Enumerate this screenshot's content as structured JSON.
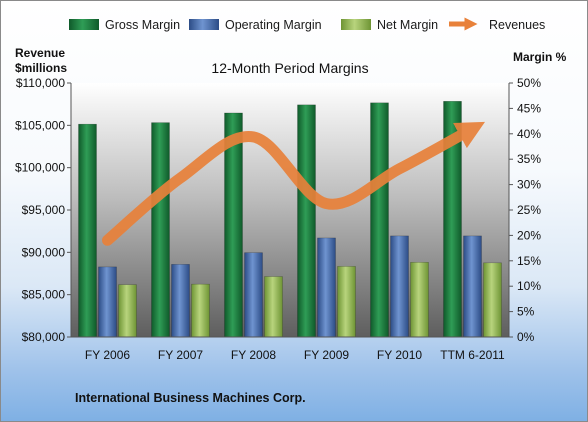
{
  "chart_data": {
    "type": "bar",
    "title": "12-Month Period Margins",
    "categories": [
      "FY 2006",
      "FY 2007",
      "FY 2008",
      "FY 2009",
      "FY 2010",
      "TTM 6-2011"
    ],
    "series": [
      {
        "name": "Gross Margin",
        "type": "bar",
        "axis": "right",
        "color": "#1e7a40",
        "values": [
          41.9,
          42.2,
          44.1,
          45.7,
          46.1,
          46.4
        ]
      },
      {
        "name": "Operating Margin",
        "type": "bar",
        "axis": "right",
        "color": "#4a6fb0",
        "values": [
          13.8,
          14.3,
          16.6,
          19.5,
          19.9,
          19.9
        ]
      },
      {
        "name": "Net Margin",
        "type": "bar",
        "axis": "right",
        "color": "#96ba5a",
        "values": [
          10.3,
          10.4,
          11.9,
          13.9,
          14.7,
          14.6
        ]
      },
      {
        "name": "Revenues",
        "type": "line",
        "axis": "left",
        "color": "#e8813a",
        "values": [
          91424,
          98786,
          103630,
          95758,
          99870,
          104600
        ]
      }
    ],
    "ylabel_left": [
      "Revenue",
      "$millions"
    ],
    "ylabel_right": "Margin %",
    "ylim_left": [
      80000,
      110000
    ],
    "ylim_right": [
      0,
      50
    ],
    "yticks_left": [
      "$80,000",
      "$85,000",
      "$90,000",
      "$95,000",
      "$100,000",
      "$105,000",
      "$110,000"
    ],
    "yticks_right": [
      "0%",
      "5%",
      "10%",
      "15%",
      "20%",
      "25%",
      "30%",
      "35%",
      "40%",
      "45%",
      "50%"
    ],
    "legend_position": "top",
    "grid": false
  },
  "footer": "International Business Machines Corp."
}
